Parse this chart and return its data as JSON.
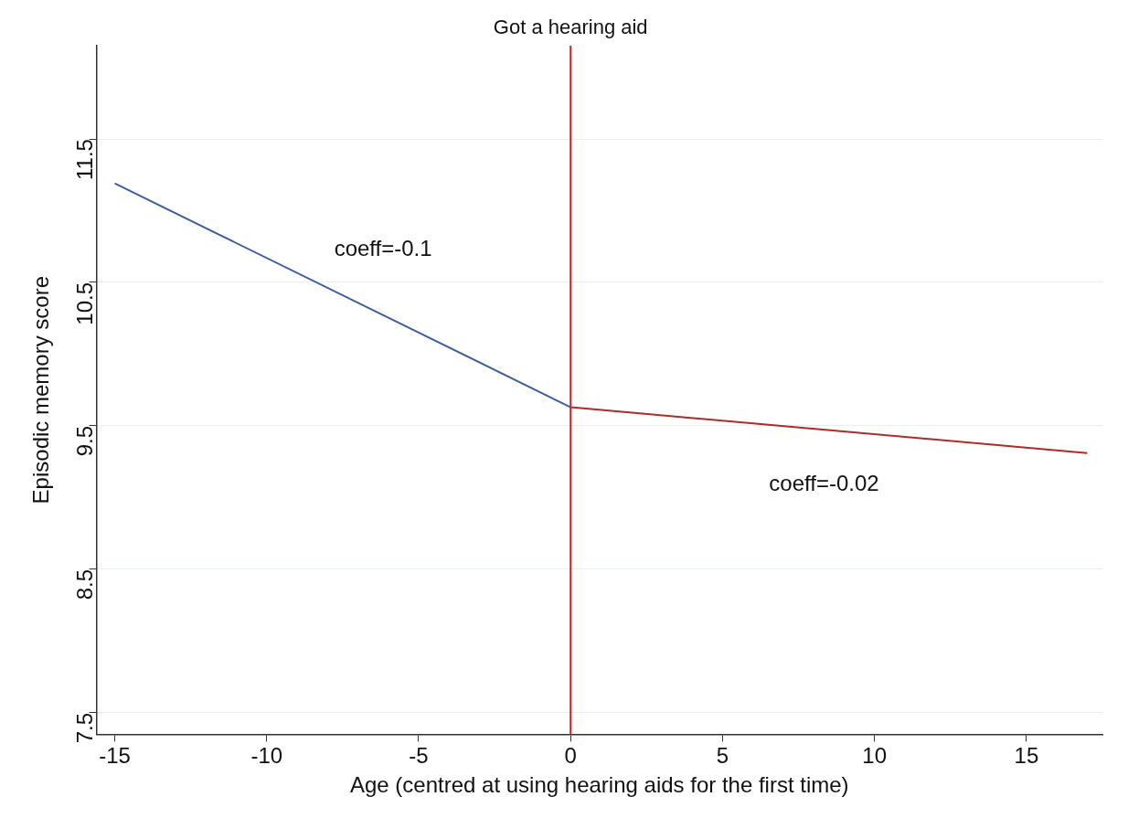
{
  "chart_data": {
    "type": "line",
    "xlabel": "Age (centred at using hearing aids for the first time)",
    "ylabel": "Episodic memory score",
    "series": [
      {
        "color": "#3b5e9e",
        "x": [
          -15,
          0
        ],
        "values": [
          11.19,
          9.63
        ]
      },
      {
        "color": "#b02a2a",
        "x": [
          0,
          17
        ],
        "values": [
          9.63,
          9.31
        ]
      }
    ],
    "xlim": [
      -15.6,
      17.5
    ],
    "xticks": [
      -15,
      -10,
      -5,
      0,
      5,
      10,
      15
    ],
    "ylim": [
      7.35,
      12.15
    ],
    "yticks": [
      7.5,
      8.5,
      9.5,
      10.5,
      11.5
    ],
    "grid": "y",
    "marker": "none",
    "line_style": "solid",
    "legend": false,
    "ref_lines": [
      {
        "axis": "x",
        "value": 0,
        "label": "Got a hearing aid",
        "color": "#d42020"
      }
    ],
    "annotations": [
      "coeff=-0.1",
      "coeff=-0.02"
    ]
  }
}
